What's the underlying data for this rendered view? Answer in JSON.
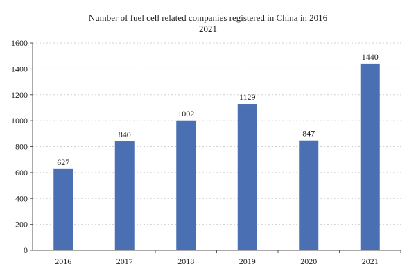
{
  "chart_data": {
    "type": "bar",
    "title": "Number of fuel cell related companies registered in China in 2016",
    "subtitle": "2021",
    "xlabel": "",
    "ylabel": "",
    "categories": [
      "2016",
      "2017",
      "2018",
      "2019",
      "2020",
      "2021"
    ],
    "values": [
      627,
      840,
      1002,
      1129,
      847,
      1440
    ],
    "ylim": [
      0,
      1600
    ],
    "yticks": [
      0,
      200,
      400,
      600,
      800,
      1000,
      1200,
      1400,
      1600
    ],
    "grid": true,
    "bar_color": "#4a6fb3",
    "grid_color": "#cfcfcf"
  }
}
